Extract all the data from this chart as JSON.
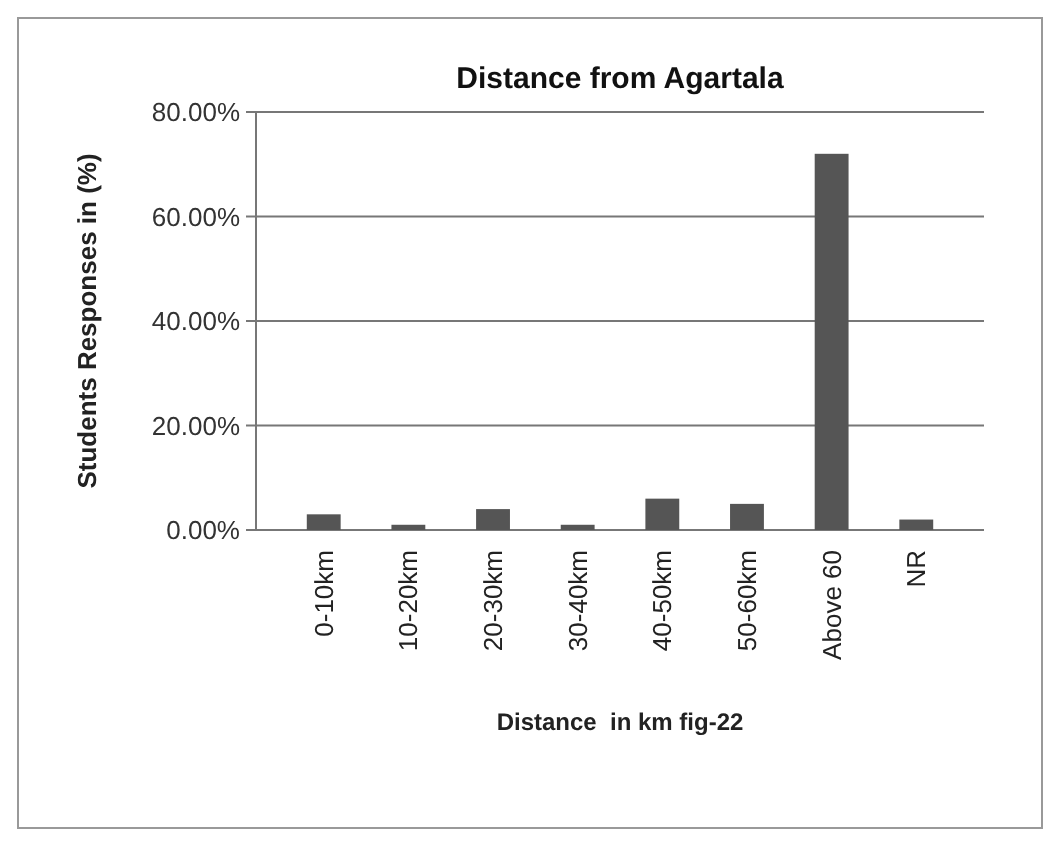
{
  "chart_data": {
    "type": "bar",
    "title": "Distance from Agartala",
    "xlabel": "Distance  in km fig-22",
    "ylabel": "Students Responses in (%)",
    "categories": [
      "0-10km",
      "10-20km",
      "20-30km",
      "30-40km",
      "40-50km",
      "50-60km",
      "Above 60",
      "NR"
    ],
    "values": [
      3,
      1,
      4,
      1,
      6,
      5,
      72,
      2
    ],
    "color": "#555555",
    "ylim": [
      0,
      80
    ],
    "yticks": [
      {
        "value": 0,
        "label": "0.00%"
      },
      {
        "value": 20,
        "label": "20.00%"
      },
      {
        "value": 40,
        "label": "40.00%"
      },
      {
        "value": 60,
        "label": "60.00%"
      },
      {
        "value": 80,
        "label": "80.00%"
      }
    ],
    "grid": "y"
  }
}
